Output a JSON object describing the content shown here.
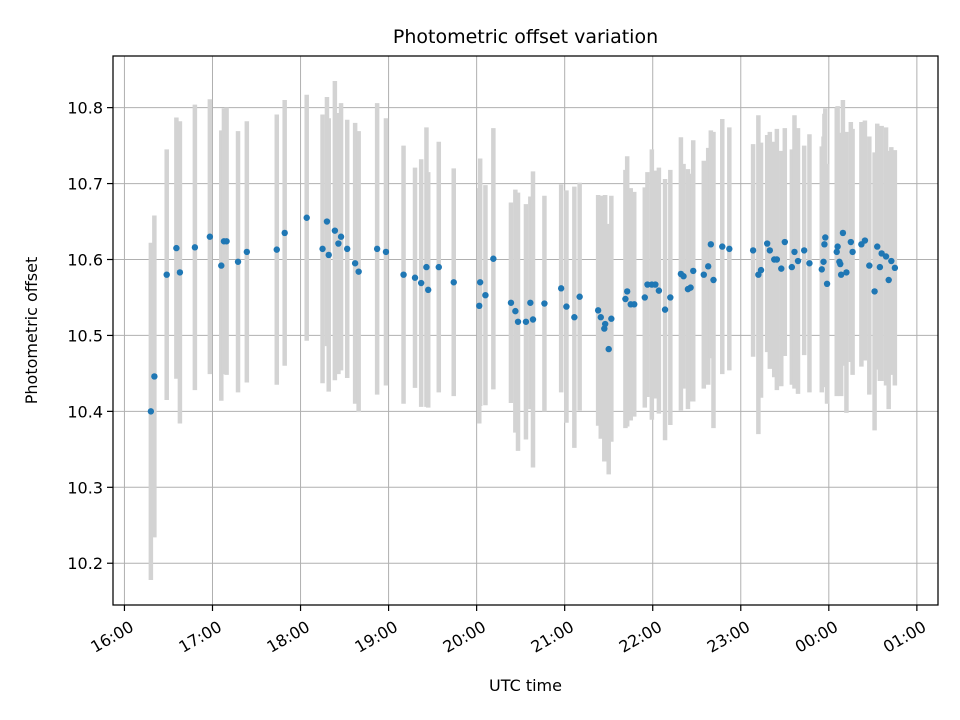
{
  "chart_data": {
    "type": "scatter",
    "title": "Photometric offset variation",
    "xlabel": "UTC time",
    "ylabel": "Photometric offset",
    "grid": true,
    "xlim": [
      15.87,
      25.24
    ],
    "ylim": [
      10.145,
      10.868
    ],
    "x_tick_values": [
      16,
      17,
      18,
      19,
      20,
      21,
      22,
      23,
      24,
      25
    ],
    "x_tick_labels": [
      "16:00",
      "17:00",
      "18:00",
      "19:00",
      "20:00",
      "21:00",
      "22:00",
      "23:00",
      "00:00",
      "01:00"
    ],
    "y_tick_values": [
      10.2,
      10.3,
      10.4,
      10.5,
      10.6,
      10.7,
      10.8
    ],
    "y_tick_labels": [
      "10.2",
      "10.3",
      "10.4",
      "10.5",
      "10.6",
      "10.7",
      "10.8"
    ],
    "colors": {
      "points": "#1f77b4",
      "errorbars": "#d3d3d3",
      "grid": "#b0b0b0"
    },
    "points": [
      [
        16.3,
        10.4,
        0.222
      ],
      [
        16.34,
        10.446,
        0.212
      ],
      [
        16.48,
        10.58,
        0.165
      ],
      [
        16.59,
        10.615,
        0.172
      ],
      [
        16.63,
        10.583,
        0.199
      ],
      [
        16.8,
        10.616,
        0.188
      ],
      [
        16.97,
        10.63,
        0.181
      ],
      [
        17.1,
        10.592,
        0.178
      ],
      [
        17.13,
        10.624,
        0.175
      ],
      [
        17.16,
        10.624,
        0.176
      ],
      [
        17.29,
        10.597,
        0.172
      ],
      [
        17.39,
        10.61,
        0.172
      ],
      [
        17.73,
        10.613,
        0.178
      ],
      [
        17.82,
        10.635,
        0.175
      ],
      [
        18.07,
        10.655,
        0.162
      ],
      [
        18.25,
        10.614,
        0.177
      ],
      [
        18.3,
        10.65,
        0.164
      ],
      [
        18.32,
        10.606,
        0.18
      ],
      [
        18.39,
        10.638,
        0.197
      ],
      [
        18.43,
        10.621,
        0.172
      ],
      [
        18.46,
        10.63,
        0.176
      ],
      [
        18.53,
        10.614,
        0.17
      ],
      [
        18.62,
        10.595,
        0.185
      ],
      [
        18.66,
        10.584,
        0.185
      ],
      [
        18.87,
        10.614,
        0.192
      ],
      [
        18.97,
        10.61,
        0.176
      ],
      [
        19.17,
        10.58,
        0.17
      ],
      [
        19.3,
        10.576,
        0.145
      ],
      [
        19.37,
        10.569,
        0.163
      ],
      [
        19.43,
        10.59,
        0.184
      ],
      [
        19.45,
        10.56,
        0.155
      ],
      [
        19.57,
        10.59,
        0.165
      ],
      [
        19.74,
        10.57,
        0.15
      ],
      [
        20.03,
        10.539,
        0.155
      ],
      [
        20.04,
        10.57,
        0.163
      ],
      [
        20.1,
        10.553,
        0.145
      ],
      [
        20.19,
        10.601,
        0.172
      ],
      [
        20.39,
        10.543,
        0.132
      ],
      [
        20.44,
        10.532,
        0.16
      ],
      [
        20.47,
        10.518,
        0.17
      ],
      [
        20.56,
        10.518,
        0.155
      ],
      [
        20.61,
        10.543,
        0.14
      ],
      [
        20.64,
        10.521,
        0.195
      ],
      [
        20.77,
        10.542,
        0.142
      ],
      [
        20.96,
        10.562,
        0.137
      ],
      [
        21.02,
        10.538,
        0.153
      ],
      [
        21.11,
        10.524,
        0.172
      ],
      [
        21.17,
        10.551,
        0.15
      ],
      [
        21.38,
        10.533,
        0.152
      ],
      [
        21.41,
        10.524,
        0.16
      ],
      [
        21.45,
        10.509,
        0.175
      ],
      [
        21.46,
        10.515,
        0.17
      ],
      [
        21.5,
        10.482,
        0.165
      ],
      [
        21.53,
        10.522,
        0.162
      ],
      [
        21.69,
        10.548,
        0.17
      ],
      [
        21.71,
        10.558,
        0.178
      ],
      [
        21.75,
        10.541,
        0.153
      ],
      [
        21.79,
        10.541,
        0.148
      ],
      [
        21.91,
        10.55,
        0.145
      ],
      [
        21.94,
        10.567,
        0.148
      ],
      [
        21.99,
        10.567,
        0.178
      ],
      [
        22.03,
        10.567,
        0.15
      ],
      [
        22.07,
        10.559,
        0.162
      ],
      [
        22.14,
        10.534,
        0.172
      ],
      [
        22.2,
        10.55,
        0.168
      ],
      [
        22.32,
        10.581,
        0.18
      ],
      [
        22.35,
        10.578,
        0.148
      ],
      [
        22.4,
        10.561,
        0.158
      ],
      [
        22.43,
        10.563,
        0.15
      ],
      [
        22.46,
        10.585,
        0.172
      ],
      [
        22.58,
        10.58,
        0.15
      ],
      [
        22.63,
        10.591,
        0.156
      ],
      [
        22.66,
        10.62,
        0.15
      ],
      [
        22.69,
        10.573,
        0.195
      ],
      [
        22.79,
        10.617,
        0.168
      ],
      [
        22.87,
        10.614,
        0.16
      ],
      [
        23.14,
        10.612,
        0.14
      ],
      [
        23.2,
        10.58,
        0.21
      ],
      [
        23.23,
        10.586,
        0.168
      ],
      [
        23.3,
        10.621,
        0.143
      ],
      [
        23.33,
        10.612,
        0.156
      ],
      [
        23.38,
        10.6,
        0.155
      ],
      [
        23.41,
        10.6,
        0.172
      ],
      [
        23.46,
        10.588,
        0.155
      ],
      [
        23.5,
        10.623,
        0.15
      ],
      [
        23.58,
        10.59,
        0.155
      ],
      [
        23.61,
        10.61,
        0.18
      ],
      [
        23.65,
        10.598,
        0.175
      ],
      [
        23.72,
        10.612,
        0.138
      ],
      [
        23.78,
        10.595,
        0.17
      ],
      [
        23.92,
        10.587,
        0.162
      ],
      [
        23.94,
        10.597,
        0.165
      ],
      [
        23.95,
        10.62,
        0.172
      ],
      [
        23.96,
        10.629,
        0.17
      ],
      [
        23.98,
        10.568,
        0.158
      ],
      [
        24.09,
        10.61,
        0.19
      ],
      [
        24.1,
        10.617,
        0.185
      ],
      [
        24.12,
        10.597,
        0.17
      ],
      [
        24.13,
        10.594,
        0.168
      ],
      [
        24.14,
        10.58,
        0.16
      ],
      [
        24.16,
        10.635,
        0.175
      ],
      [
        24.2,
        10.583,
        0.185
      ],
      [
        24.25,
        10.623,
        0.158
      ],
      [
        24.27,
        10.61,
        0.162
      ],
      [
        24.37,
        10.62,
        0.161
      ],
      [
        24.41,
        10.625,
        0.158
      ],
      [
        24.46,
        10.592,
        0.17
      ],
      [
        24.52,
        10.558,
        0.183
      ],
      [
        24.55,
        10.617,
        0.162
      ],
      [
        24.58,
        10.59,
        0.15
      ],
      [
        24.6,
        10.608,
        0.168
      ],
      [
        24.65,
        10.604,
        0.17
      ],
      [
        24.68,
        10.573,
        0.17
      ],
      [
        24.71,
        10.598,
        0.15
      ],
      [
        24.75,
        10.589,
        0.155
      ]
    ]
  }
}
